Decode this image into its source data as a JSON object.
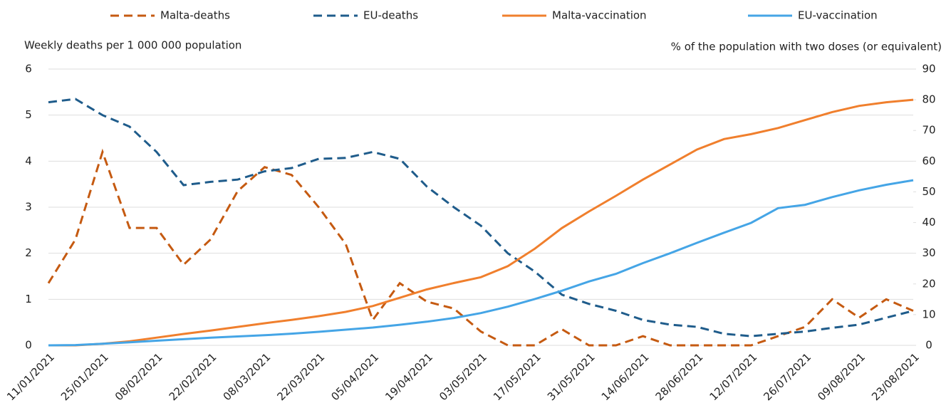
{
  "chart_data": {
    "type": "line",
    "y_label": "Weekly deaths per 1 000 000 population",
    "y2_label": "% of the population with two doses (or equivalent)",
    "categories": [
      "11/01/2021",
      null,
      "25/01/2021",
      null,
      "08/02/2021",
      null,
      "22/02/2021",
      null,
      "08/03/2021",
      null,
      "22/03/2021",
      null,
      "05/04/2021",
      null,
      "19/04/2021",
      null,
      "03/05/2021",
      null,
      "17/05/2021",
      null,
      "31/05/2021",
      null,
      "14/06/2021",
      null,
      "28/06/2021",
      null,
      "12/07/2021",
      null,
      "26/07/2021",
      null,
      "09/08/2021",
      null,
      "23/08/2021"
    ],
    "ylim": [
      0,
      6
    ],
    "yticks": [
      0,
      1,
      2,
      3,
      4,
      5,
      6
    ],
    "y2lim": [
      0,
      90
    ],
    "y2ticks": [
      0,
      10,
      20,
      30,
      40,
      50,
      60,
      70,
      80,
      90
    ],
    "grid": true,
    "legend": "top",
    "series": [
      {
        "name": "Malta-deaths",
        "color": "#c55a11",
        "dashed": true,
        "values": [
          1.35,
          2.3,
          4.2,
          2.55,
          2.55,
          1.75,
          2.3,
          3.35,
          3.87,
          3.7,
          3.0,
          2.2,
          0.55,
          1.35,
          0.95,
          0.8,
          0.3,
          0,
          0,
          0.35,
          0,
          0,
          0.2,
          0,
          0,
          0,
          0,
          0.2,
          0.4,
          1.0,
          0.6,
          1.0,
          0.75
        ]
      },
      {
        "name": "EU-deaths",
        "color": "#1f5c8b",
        "dashed": true,
        "values": [
          5.28,
          5.35,
          5.0,
          4.75,
          4.2,
          3.48,
          3.55,
          3.6,
          3.78,
          3.85,
          4.05,
          4.07,
          4.2,
          4.05,
          3.45,
          3.0,
          2.6,
          2.0,
          1.6,
          1.1,
          0.9,
          0.75,
          0.55,
          0.45,
          0.4,
          0.25,
          0.2,
          0.25,
          0.3,
          0.38,
          0.45,
          0.6,
          0.75
        ]
      },
      {
        "name": "Malta-vaccination",
        "color": "#f07f2d",
        "dashed": false,
        "axis": "y2",
        "values": [
          0,
          0,
          0.5,
          1.3,
          2.5,
          3.7,
          4.8,
          6.0,
          7.2,
          8.3,
          9.5,
          10.9,
          12.8,
          15.5,
          18.2,
          20.3,
          22.2,
          25.8,
          31.5,
          38.2,
          43.6,
          48.7,
          54.0,
          58.9,
          63.8,
          67.2,
          68.8,
          70.8,
          73.4,
          76.0,
          78.0,
          79.2,
          80.0
        ]
      },
      {
        "name": "EU-vaccination",
        "color": "#45a5e6",
        "dashed": false,
        "axis": "y2",
        "values": [
          0,
          0.1,
          0.5,
          1.0,
          1.5,
          2.0,
          2.5,
          2.9,
          3.3,
          3.8,
          4.4,
          5.1,
          5.8,
          6.7,
          7.7,
          8.9,
          10.5,
          12.6,
          15.1,
          17.8,
          20.8,
          23.3,
          26.8,
          30.0,
          33.4,
          36.7,
          39.9,
          44.7,
          45.8,
          48.3,
          50.5,
          52.3,
          53.8
        ]
      }
    ]
  }
}
